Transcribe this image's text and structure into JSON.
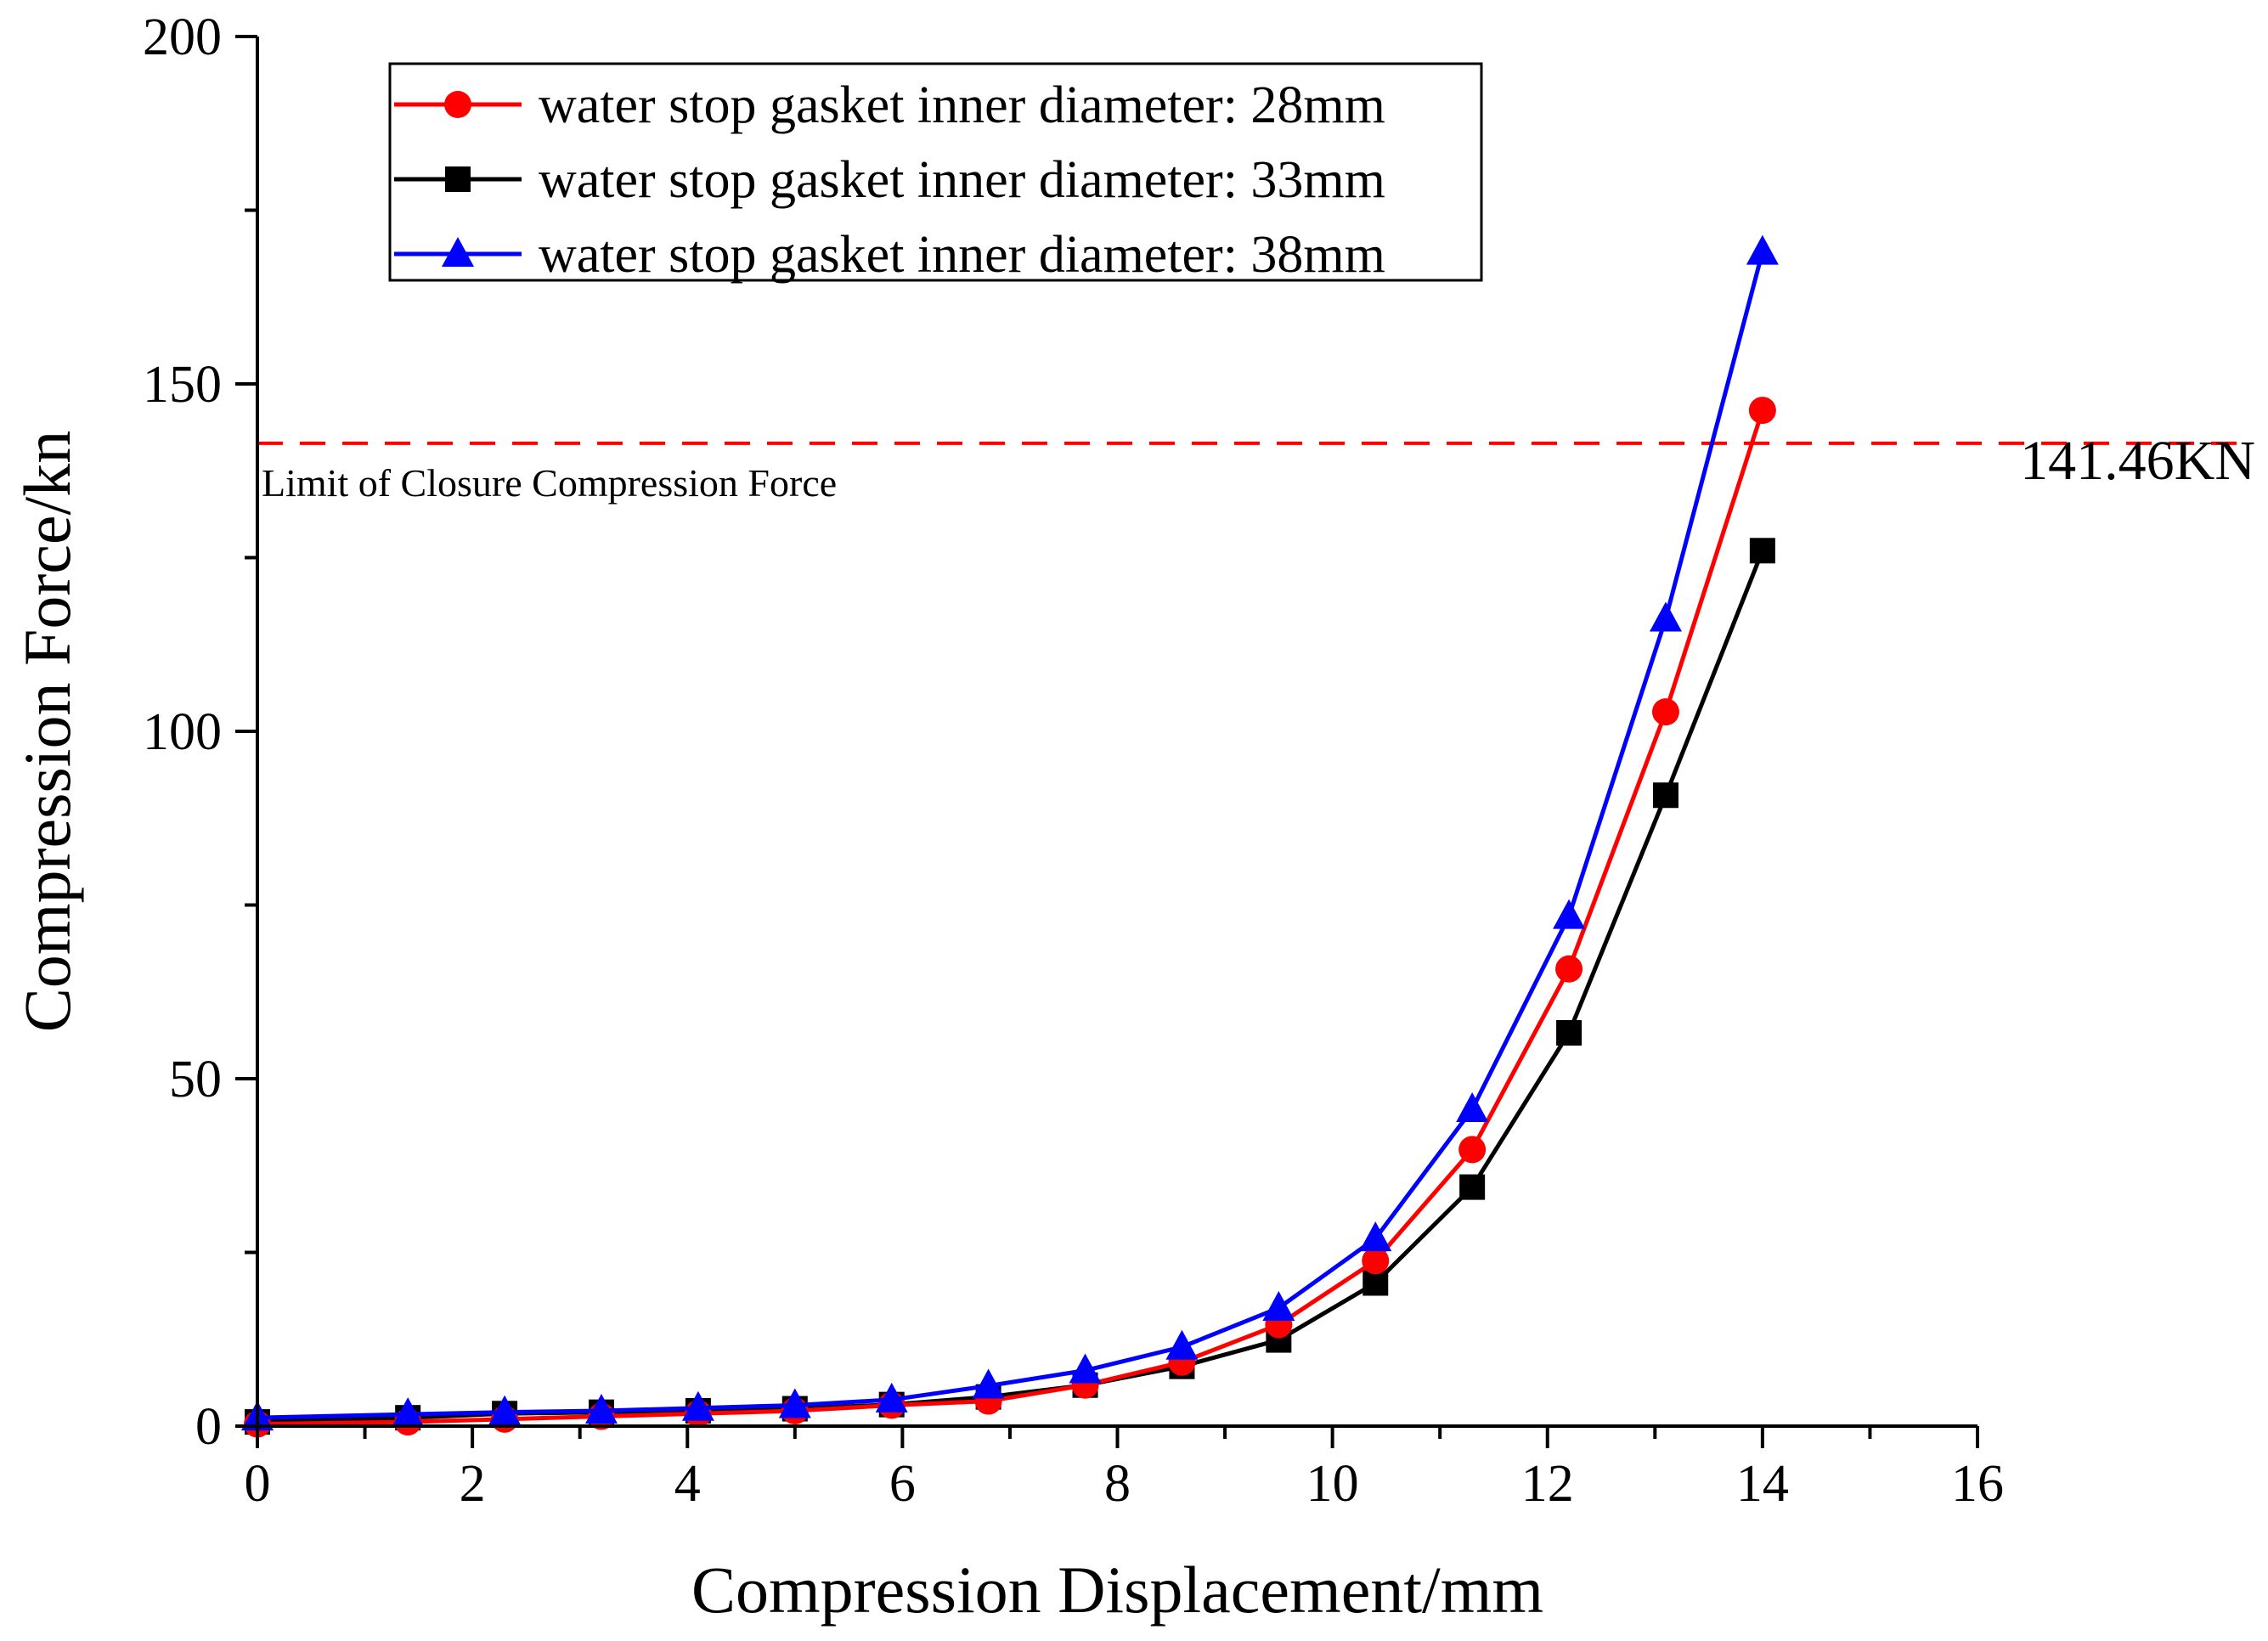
{
  "chart_data": {
    "type": "line",
    "title": "",
    "xlabel": "Compression Displacement/mm",
    "ylabel": "Compression Force/kn",
    "xlim": [
      0,
      16
    ],
    "ylim": [
      0,
      200
    ],
    "x_ticks": [
      0,
      2,
      4,
      6,
      8,
      10,
      12,
      14,
      16
    ],
    "x_tick_labels": [
      "0",
      "2",
      "4",
      "6",
      "8",
      "10",
      "12",
      "14",
      "16"
    ],
    "y_ticks": [
      0,
      50,
      100,
      150,
      200
    ],
    "y_tick_labels": [
      "0",
      "50",
      "100",
      "150",
      "200"
    ],
    "grid": false,
    "legend_position": "top-left",
    "x": [
      0,
      1.4,
      2.3,
      3.2,
      4.1,
      5.0,
      5.9,
      6.8,
      7.7,
      8.6,
      9.5,
      10.4,
      11.3,
      12.2,
      13.1,
      14.0
    ],
    "series": [
      {
        "name": "water stop gasket inner diameter: 28mm",
        "color": "#ff0000",
        "marker": "circle",
        "values": [
          0.3,
          0.6,
          1.0,
          1.4,
          1.8,
          2.2,
          3.0,
          3.6,
          5.9,
          9.2,
          14.6,
          23.8,
          39.8,
          65.8,
          102.8,
          146.2
        ]
      },
      {
        "name": "water stop gasket inner diameter: 33mm",
        "color": "#000000",
        "marker": "square",
        "values": [
          0.6,
          1.2,
          1.8,
          2.0,
          2.2,
          2.5,
          3.1,
          4.2,
          5.9,
          8.6,
          12.4,
          20.6,
          34.4,
          56.6,
          90.8,
          126.0
        ]
      },
      {
        "name": "water stop gasket inner diameter: 38mm",
        "color": "#0000ff",
        "marker": "triangle",
        "values": [
          1.2,
          1.7,
          2.0,
          2.2,
          2.6,
          3.0,
          3.8,
          5.8,
          8.0,
          11.4,
          17.0,
          27.0,
          45.6,
          73.4,
          116.2,
          169.0
        ]
      }
    ],
    "reference_line": {
      "value": 141.46,
      "color": "#ff0000",
      "style": "dashed",
      "label_left": "Limit of Closure Compression Force",
      "label_right": "141.46KN"
    }
  }
}
